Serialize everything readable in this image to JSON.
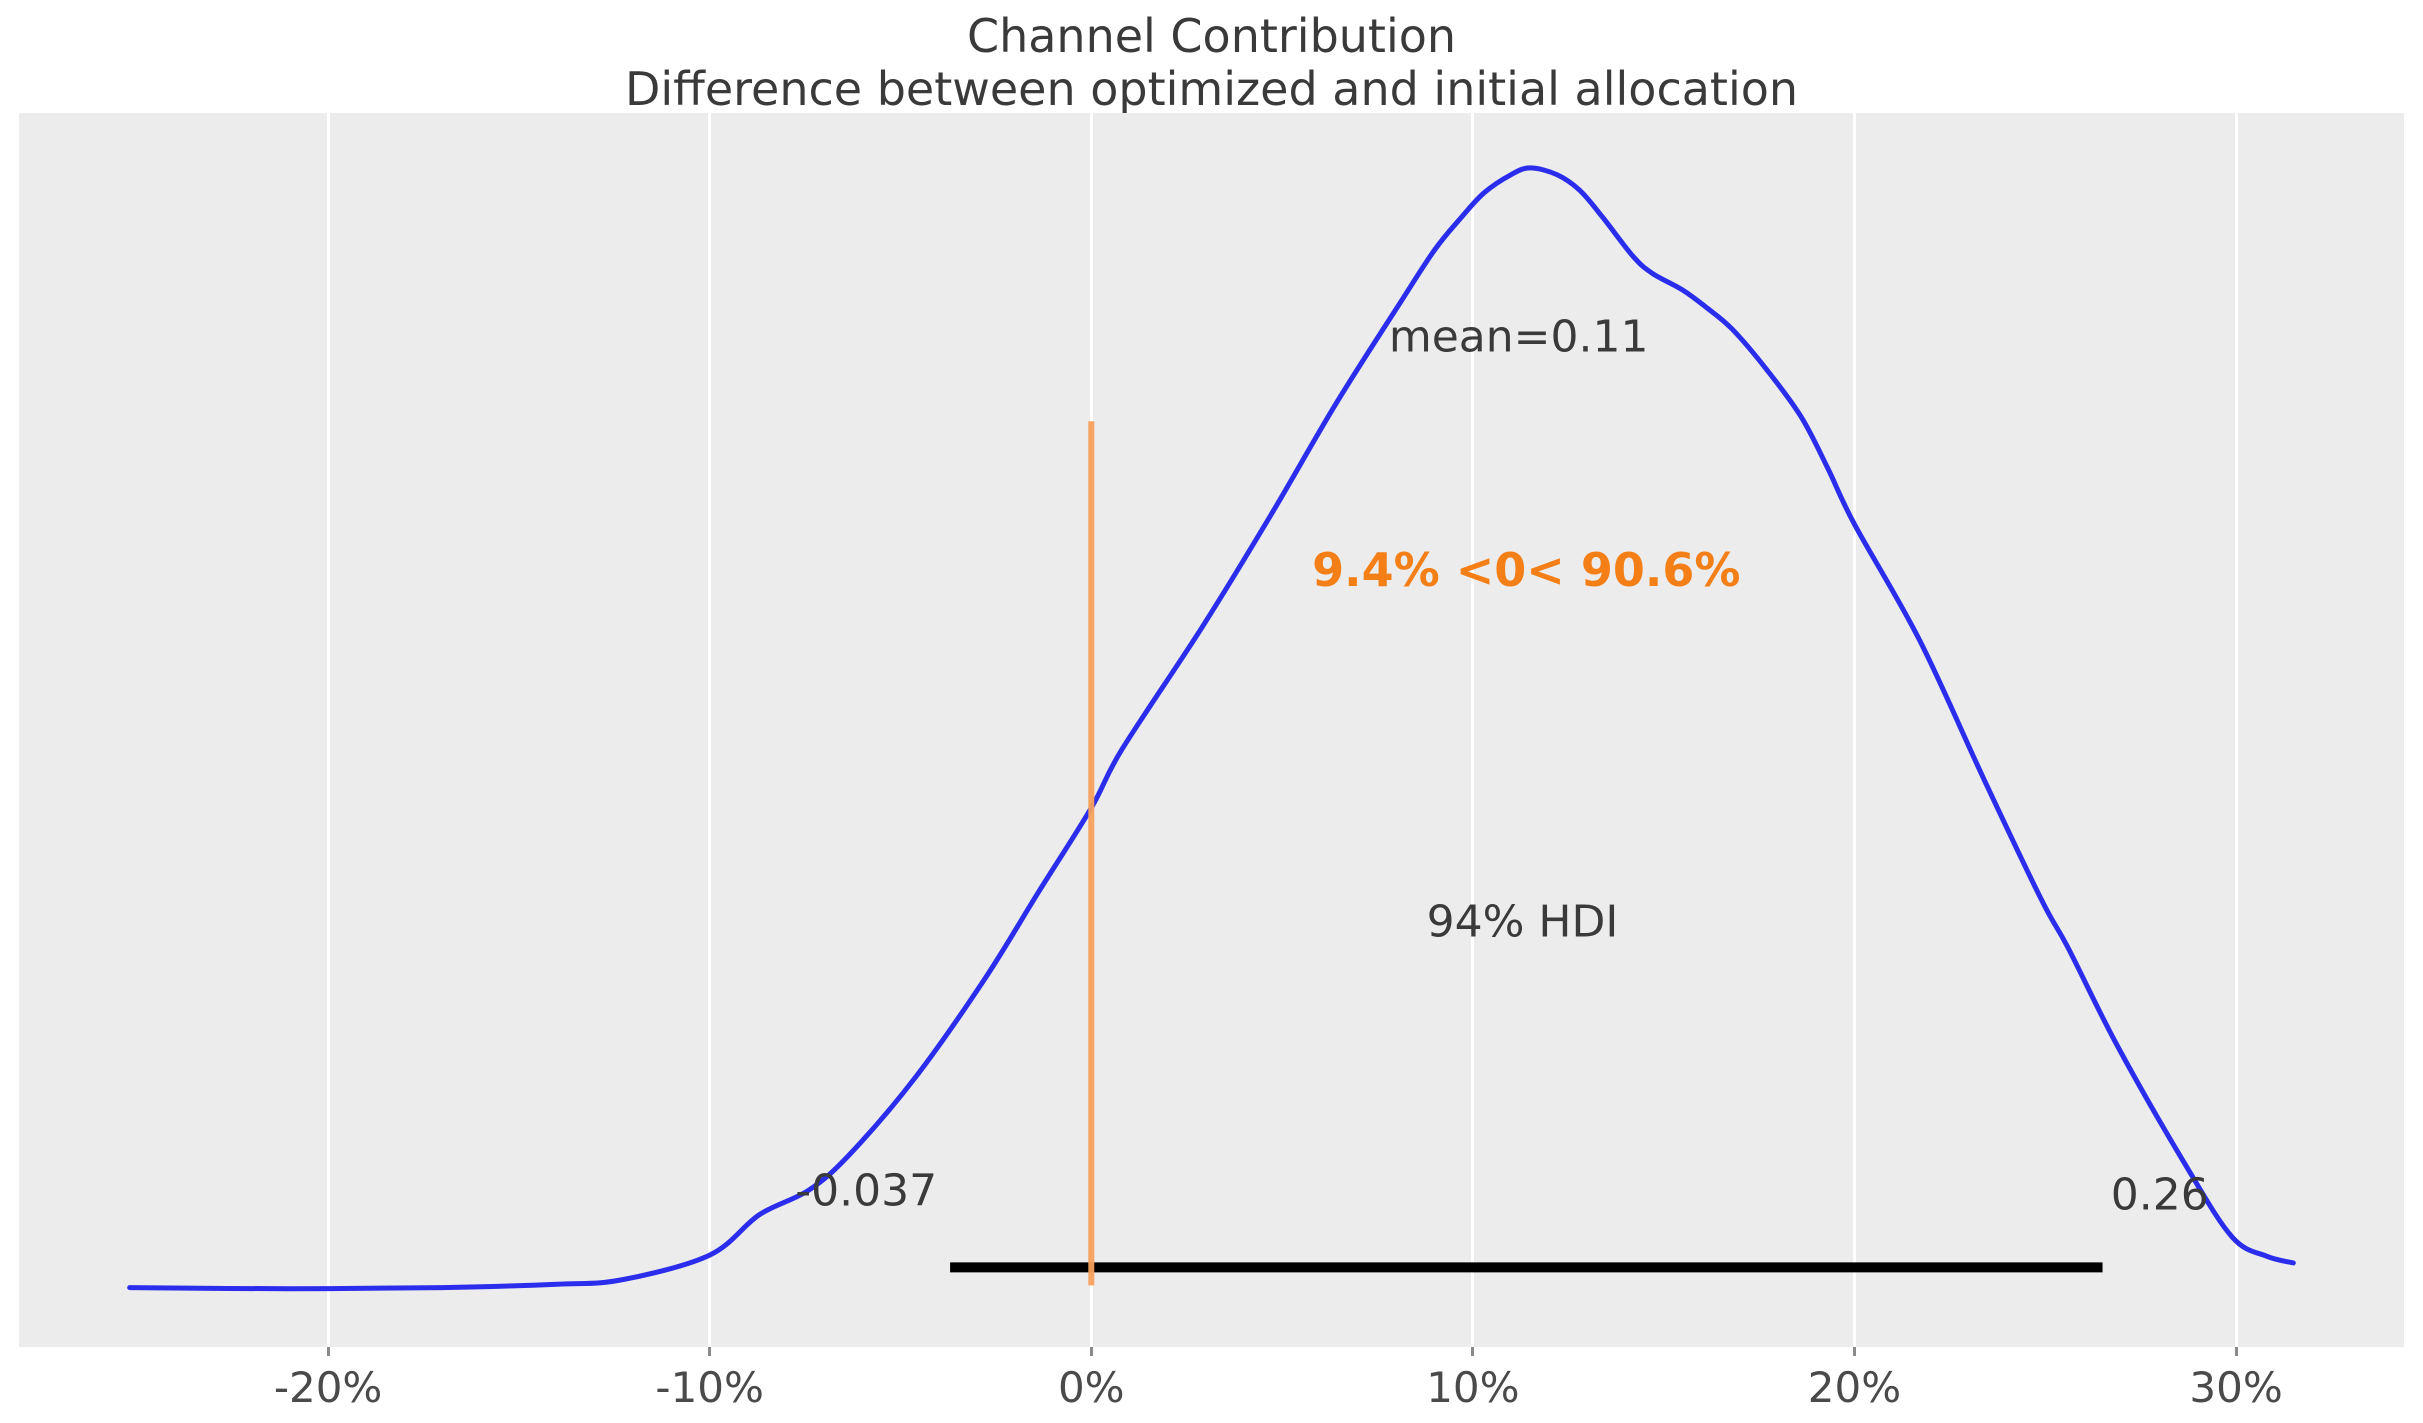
{
  "chart_data": {
    "type": "line",
    "kind": "kde-posterior-density",
    "title": "Channel Contribution",
    "subtitle": "Difference between optimized and initial allocation",
    "grid": "vertical-white-gridlines",
    "legend": "none",
    "xlim": [
      -28.1,
      34.4
    ],
    "ylim_density": [
      -0.052,
      1.049
    ],
    "x_axis": {
      "unit": "%",
      "ticks": [
        {
          "v": -20,
          "label": "-20%"
        },
        {
          "v": -10,
          "label": "-10%"
        },
        {
          "v": 0,
          "label": "0%"
        },
        {
          "v": 10,
          "label": "10%"
        },
        {
          "v": 20,
          "label": "20%"
        },
        {
          "v": 30,
          "label": "30%"
        }
      ]
    },
    "curve": {
      "x_pct": [
        -25.2,
        -21.0,
        -17.0,
        -14.0,
        -12.3,
        -10.0,
        -8.7,
        -7.4,
        -6.3,
        -4.6,
        -2.8,
        -1.4,
        0.0,
        0.8,
        2.9,
        4.7,
        6.4,
        8.1,
        9.0,
        9.7,
        10.3,
        11.0,
        11.5,
        12.2,
        12.8,
        13.4,
        14.2,
        14.7,
        15.5,
        16.1,
        16.8,
        17.7,
        18.6,
        19.3,
        20.0,
        21.7,
        23.4,
        24.9,
        25.6,
        26.9,
        28.7,
        29.9,
        30.8,
        31.5
      ],
      "density": [
        0.001,
        0.0,
        0.001,
        0.004,
        0.008,
        0.03,
        0.066,
        0.088,
        0.121,
        0.189,
        0.276,
        0.353,
        0.429,
        0.481,
        0.59,
        0.69,
        0.789,
        0.88,
        0.927,
        0.956,
        0.978,
        0.994,
        1.0,
        0.994,
        0.98,
        0.956,
        0.921,
        0.906,
        0.891,
        0.876,
        0.856,
        0.82,
        0.778,
        0.732,
        0.682,
        0.579,
        0.454,
        0.347,
        0.304,
        0.216,
        0.109,
        0.046,
        0.029,
        0.023
      ]
    },
    "mean": 0.11,
    "hdi": {
      "prob_label": "94%",
      "lower": -0.037,
      "upper": 0.26,
      "bar_x_pct": [
        -3.7,
        26.5
      ],
      "bar_y_density": 0.019
    },
    "ref_val": {
      "x_pct": 0,
      "line_top_density": 0.774,
      "line_bottom_density": 0.003,
      "proportion_text": "9.4% <0< 90.6%"
    },
    "annotations": {
      "mean": {
        "text": "mean=0.11",
        "x_pct": 11.2,
        "y_density": 0.849
      },
      "ref": {
        "text": "9.4% <0< 90.6%",
        "x_pct": 11.4,
        "y_density": 0.641
      },
      "hdi_text": {
        "text": "94% HDI",
        "x_pct": 11.3,
        "y_density": 0.327
      },
      "hdi_lower": {
        "text": "-0.037",
        "x_pct": -5.9,
        "y_density": 0.087
      },
      "hdi_upper": {
        "text": "0.26",
        "x_pct": 28.0,
        "y_density": 0.084
      }
    },
    "colors": {
      "curve": "#2a2eec",
      "ref_line": "#f7a05a",
      "ref_text": "#f57f17",
      "hdi_bar": "#000000",
      "text": "#3a3a3a",
      "tick_text": "#4a4a4a",
      "plot_bg": "#ececec",
      "grid": "#ffffff"
    }
  }
}
